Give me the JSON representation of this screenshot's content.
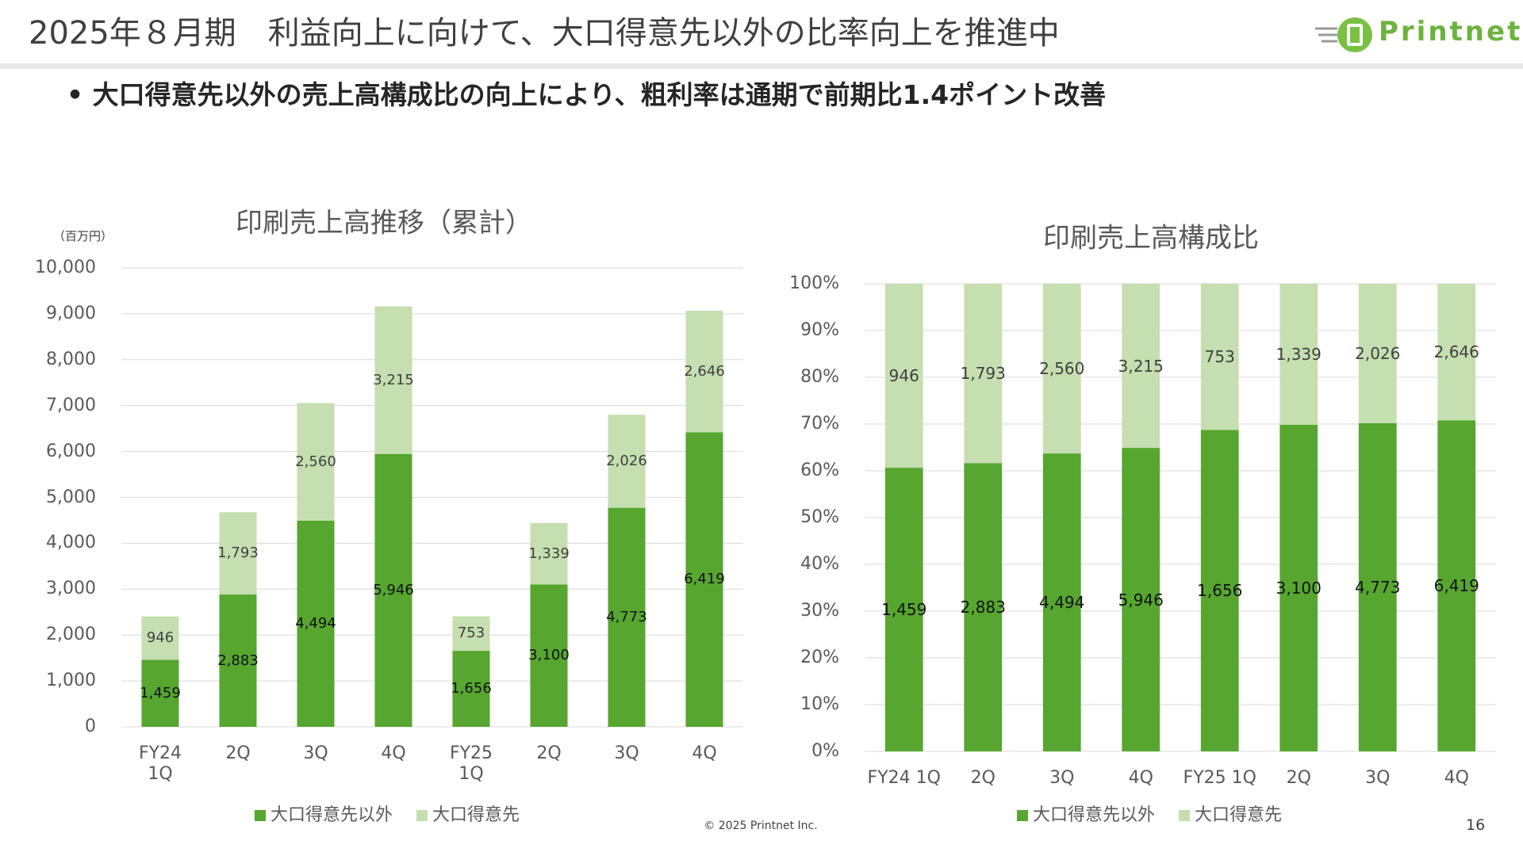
{
  "slide": {
    "title": "2025年８月期　利益向上に向けて、大口得意先以外の比率向上を推進中",
    "bullet": "大口得意先以外の売上高構成比の向上により、粗利率は通期で前期比1.4ポイント改善",
    "logo": "Printnet",
    "copyright": "© 2025 Printnet Inc.",
    "page": "16"
  },
  "chart_data": [
    {
      "type": "stacked_bar",
      "title": "印刷売上高推移（累計）",
      "unit_label": "（百万円）",
      "categories": [
        "FY24\n1Q",
        "2Q",
        "3Q",
        "4Q",
        "FY25\n1Q",
        "2Q",
        "3Q",
        "4Q"
      ],
      "series": [
        {
          "name": "大口得意先以外",
          "color": "#56a630",
          "values": [
            1459,
            2883,
            4494,
            5946,
            1656,
            3100,
            4773,
            6419
          ],
          "value_labels": [
            "1,459",
            "2,883",
            "4,494",
            "5,946",
            "1,656",
            "3,100",
            "4,773",
            "6,419"
          ]
        },
        {
          "name": "大口得意先",
          "color": "#c5dfb0",
          "values": [
            946,
            1793,
            2560,
            3215,
            753,
            1339,
            2026,
            2646
          ],
          "value_labels": [
            "946",
            "1,793",
            "2,560",
            "3,215",
            "753",
            "1,339",
            "2,026",
            "2,646"
          ]
        }
      ],
      "ylim": [
        0,
        10000
      ],
      "yticks": [
        0,
        {
          "value": 1000,
          "label": "1,000"
        },
        {
          "value": 2000,
          "label": "2,000"
        },
        {
          "value": 3000,
          "label": "3,000"
        },
        {
          "value": 4000,
          "label": "4,000"
        },
        {
          "value": 5000,
          "label": "5,000"
        },
        {
          "value": 6000,
          "label": "6,000"
        },
        {
          "value": 7000,
          "label": "7,000"
        },
        {
          "value": 8000,
          "label": "8,000"
        },
        {
          "value": 9000,
          "label": "9,000"
        },
        {
          "value": 10000,
          "label": "10,000"
        }
      ],
      "grid": true,
      "normalize": false,
      "legend": "bottom"
    },
    {
      "type": "stacked_bar",
      "title": "印刷売上高構成比",
      "categories": [
        "FY24 1Q",
        "2Q",
        "3Q",
        "4Q",
        "FY25 1Q",
        "2Q",
        "3Q",
        "4Q"
      ],
      "series": [
        {
          "name": "大口得意先以外",
          "color": "#56a630",
          "values": [
            1459,
            2883,
            4494,
            5946,
            1656,
            3100,
            4773,
            6419
          ],
          "value_labels": [
            "1,459",
            "2,883",
            "4,494",
            "5,946",
            "1,656",
            "3,100",
            "4,773",
            "6,419"
          ]
        },
        {
          "name": "大口得意先",
          "color": "#c5dfb0",
          "values": [
            946,
            1793,
            2560,
            3215,
            753,
            1339,
            2026,
            2646
          ],
          "value_labels": [
            "946",
            "1,793",
            "2,560",
            "3,215",
            "753",
            "1,339",
            "2,026",
            "2,646"
          ]
        }
      ],
      "ylim": [
        0,
        100
      ],
      "yticks": [
        {
          "value": 0,
          "label": "0%"
        },
        {
          "value": 10,
          "label": "10%"
        },
        {
          "value": 20,
          "label": "20%"
        },
        {
          "value": 30,
          "label": "30%"
        },
        {
          "value": 40,
          "label": "40%"
        },
        {
          "value": 50,
          "label": "50%"
        },
        {
          "value": 60,
          "label": "60%"
        },
        {
          "value": 70,
          "label": "70%"
        },
        {
          "value": 80,
          "label": "80%"
        },
        {
          "value": 90,
          "label": "90%"
        },
        {
          "value": 100,
          "label": "100%"
        }
      ],
      "grid": true,
      "normalize": true,
      "legend": "bottom"
    }
  ]
}
